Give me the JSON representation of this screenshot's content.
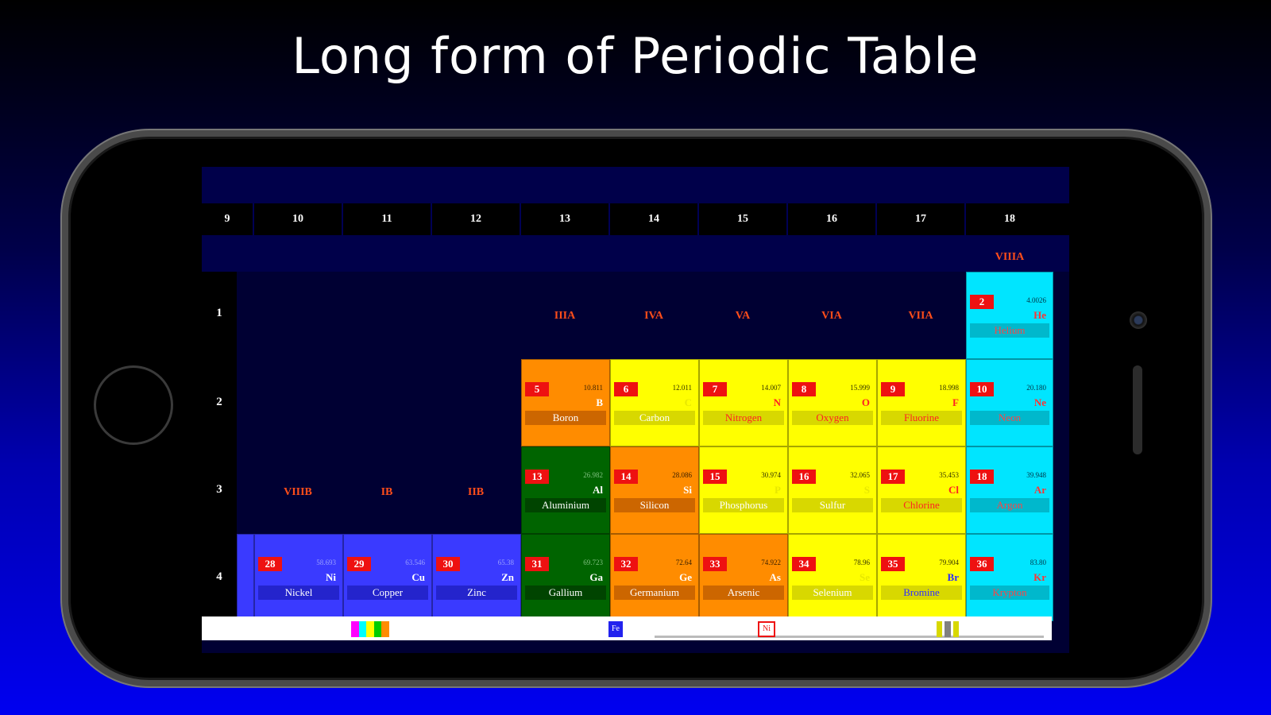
{
  "promo": {
    "title": "Long form of Periodic Table"
  },
  "table": {
    "groups": [
      "9",
      "10",
      "11",
      "12",
      "13",
      "14",
      "15",
      "16",
      "17",
      "18"
    ],
    "periods": [
      "1",
      "2",
      "3",
      "4"
    ],
    "roman": {
      "viiia": "VIIIA",
      "iiia": "IIIA",
      "iva": "IVA",
      "va": "VA",
      "via": "VIA",
      "viia": "VIIA",
      "viiib": "VIIIB",
      "ib": "IB",
      "iib": "IIB"
    },
    "elements": {
      "He": {
        "number": "2",
        "mass": "4.0026",
        "symbol": "He",
        "name": "Helium"
      },
      "B": {
        "number": "5",
        "mass": "10.811",
        "symbol": "B",
        "name": "Boron"
      },
      "C": {
        "number": "6",
        "mass": "12.011",
        "symbol": "C",
        "name": "Carbon"
      },
      "N": {
        "number": "7",
        "mass": "14.007",
        "symbol": "N",
        "name": "Nitrogen"
      },
      "O": {
        "number": "8",
        "mass": "15.999",
        "symbol": "O",
        "name": "Oxygen"
      },
      "F": {
        "number": "9",
        "mass": "18.998",
        "symbol": "F",
        "name": "Fluorine"
      },
      "Ne": {
        "number": "10",
        "mass": "20.180",
        "symbol": "Ne",
        "name": "Neon"
      },
      "Al": {
        "number": "13",
        "mass": "26.982",
        "symbol": "Al",
        "name": "Aluminium"
      },
      "Si": {
        "number": "14",
        "mass": "28.086",
        "symbol": "Si",
        "name": "Silicon"
      },
      "P": {
        "number": "15",
        "mass": "30.974",
        "symbol": "P",
        "name": "Phosphorus"
      },
      "S": {
        "number": "16",
        "mass": "32.065",
        "symbol": "S",
        "name": "Sulfur"
      },
      "Cl": {
        "number": "17",
        "mass": "35.453",
        "symbol": "Cl",
        "name": "Chlorine"
      },
      "Ar": {
        "number": "18",
        "mass": "39.948",
        "symbol": "Ar",
        "name": "Argon"
      },
      "Ni": {
        "number": "28",
        "mass": "58.693",
        "symbol": "Ni",
        "name": "Nickel"
      },
      "Cu": {
        "number": "29",
        "mass": "63.546",
        "symbol": "Cu",
        "name": "Copper"
      },
      "Zn": {
        "number": "30",
        "mass": "65.38",
        "symbol": "Zn",
        "name": "Zinc"
      },
      "Ga": {
        "number": "31",
        "mass": "69.723",
        "symbol": "Ga",
        "name": "Gallium"
      },
      "Ge": {
        "number": "32",
        "mass": "72.64",
        "symbol": "Ge",
        "name": "Germanium"
      },
      "As": {
        "number": "33",
        "mass": "74.922",
        "symbol": "As",
        "name": "Arsenic"
      },
      "Se": {
        "number": "34",
        "mass": "78.96",
        "symbol": "Se",
        "name": "Selenium"
      },
      "Br": {
        "number": "35",
        "mass": "79.904",
        "symbol": "Br",
        "name": "Bromine"
      },
      "Kr": {
        "number": "36",
        "mass": "83.80",
        "symbol": "Kr",
        "name": "Krypton"
      }
    }
  },
  "toolbar": {
    "fe_label": "Fe",
    "ni_label": "Ni",
    "palette_icon": "color-palette-icon",
    "bars_icon": "bars-icon"
  },
  "colors": {
    "orange": "#ff8c00",
    "yellow": "#ffff00",
    "green": "#006400",
    "cyan": "#00e5ff",
    "blue": "#3a3aff",
    "number_badge": "#ee1111",
    "roman_label": "#ff4d1a"
  }
}
